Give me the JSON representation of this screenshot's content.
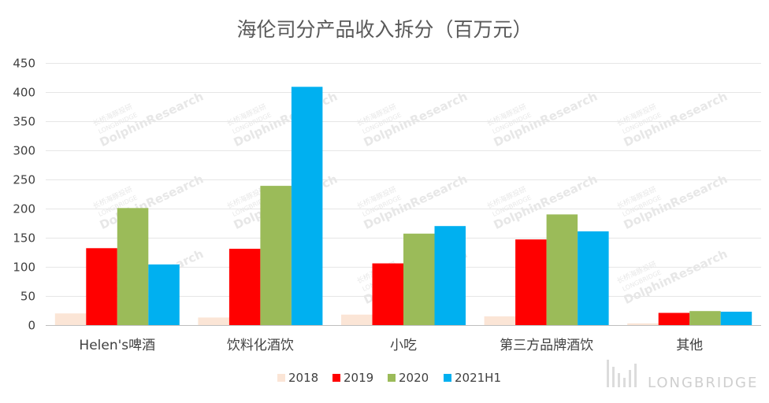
{
  "chart_data": {
    "type": "bar",
    "title": "海伦司分产品收入拆分（百万元）",
    "categories": [
      "Helen's啤酒",
      "饮料化酒饮",
      "小吃",
      "第三方品牌酒饮",
      "其他"
    ],
    "series": [
      {
        "name": "2018",
        "color": "#fbe5d6",
        "values": [
          20,
          13,
          18,
          15,
          3
        ]
      },
      {
        "name": "2019",
        "color": "#ff0000",
        "values": [
          132,
          131,
          106,
          147,
          21
        ]
      },
      {
        "name": "2020",
        "color": "#9bbb59",
        "values": [
          201,
          239,
          157,
          190,
          24
        ]
      },
      {
        "name": "2021H1",
        "color": "#00b0f0",
        "values": [
          104,
          409,
          170,
          161,
          23
        ]
      }
    ],
    "ylim": [
      0,
      450
    ],
    "yticks": [
      0,
      50,
      100,
      150,
      200,
      250,
      300,
      350,
      400,
      450
    ],
    "grid": true,
    "legend_position": "bottom"
  },
  "watermark": {
    "cn_text": "长桥海豚投研",
    "en_small": "LONGBRIDGE",
    "en_large": "DolphinResearch"
  },
  "brand": {
    "label": "LONGBRIDGE",
    "icon": "longbridge-logo-icon"
  }
}
